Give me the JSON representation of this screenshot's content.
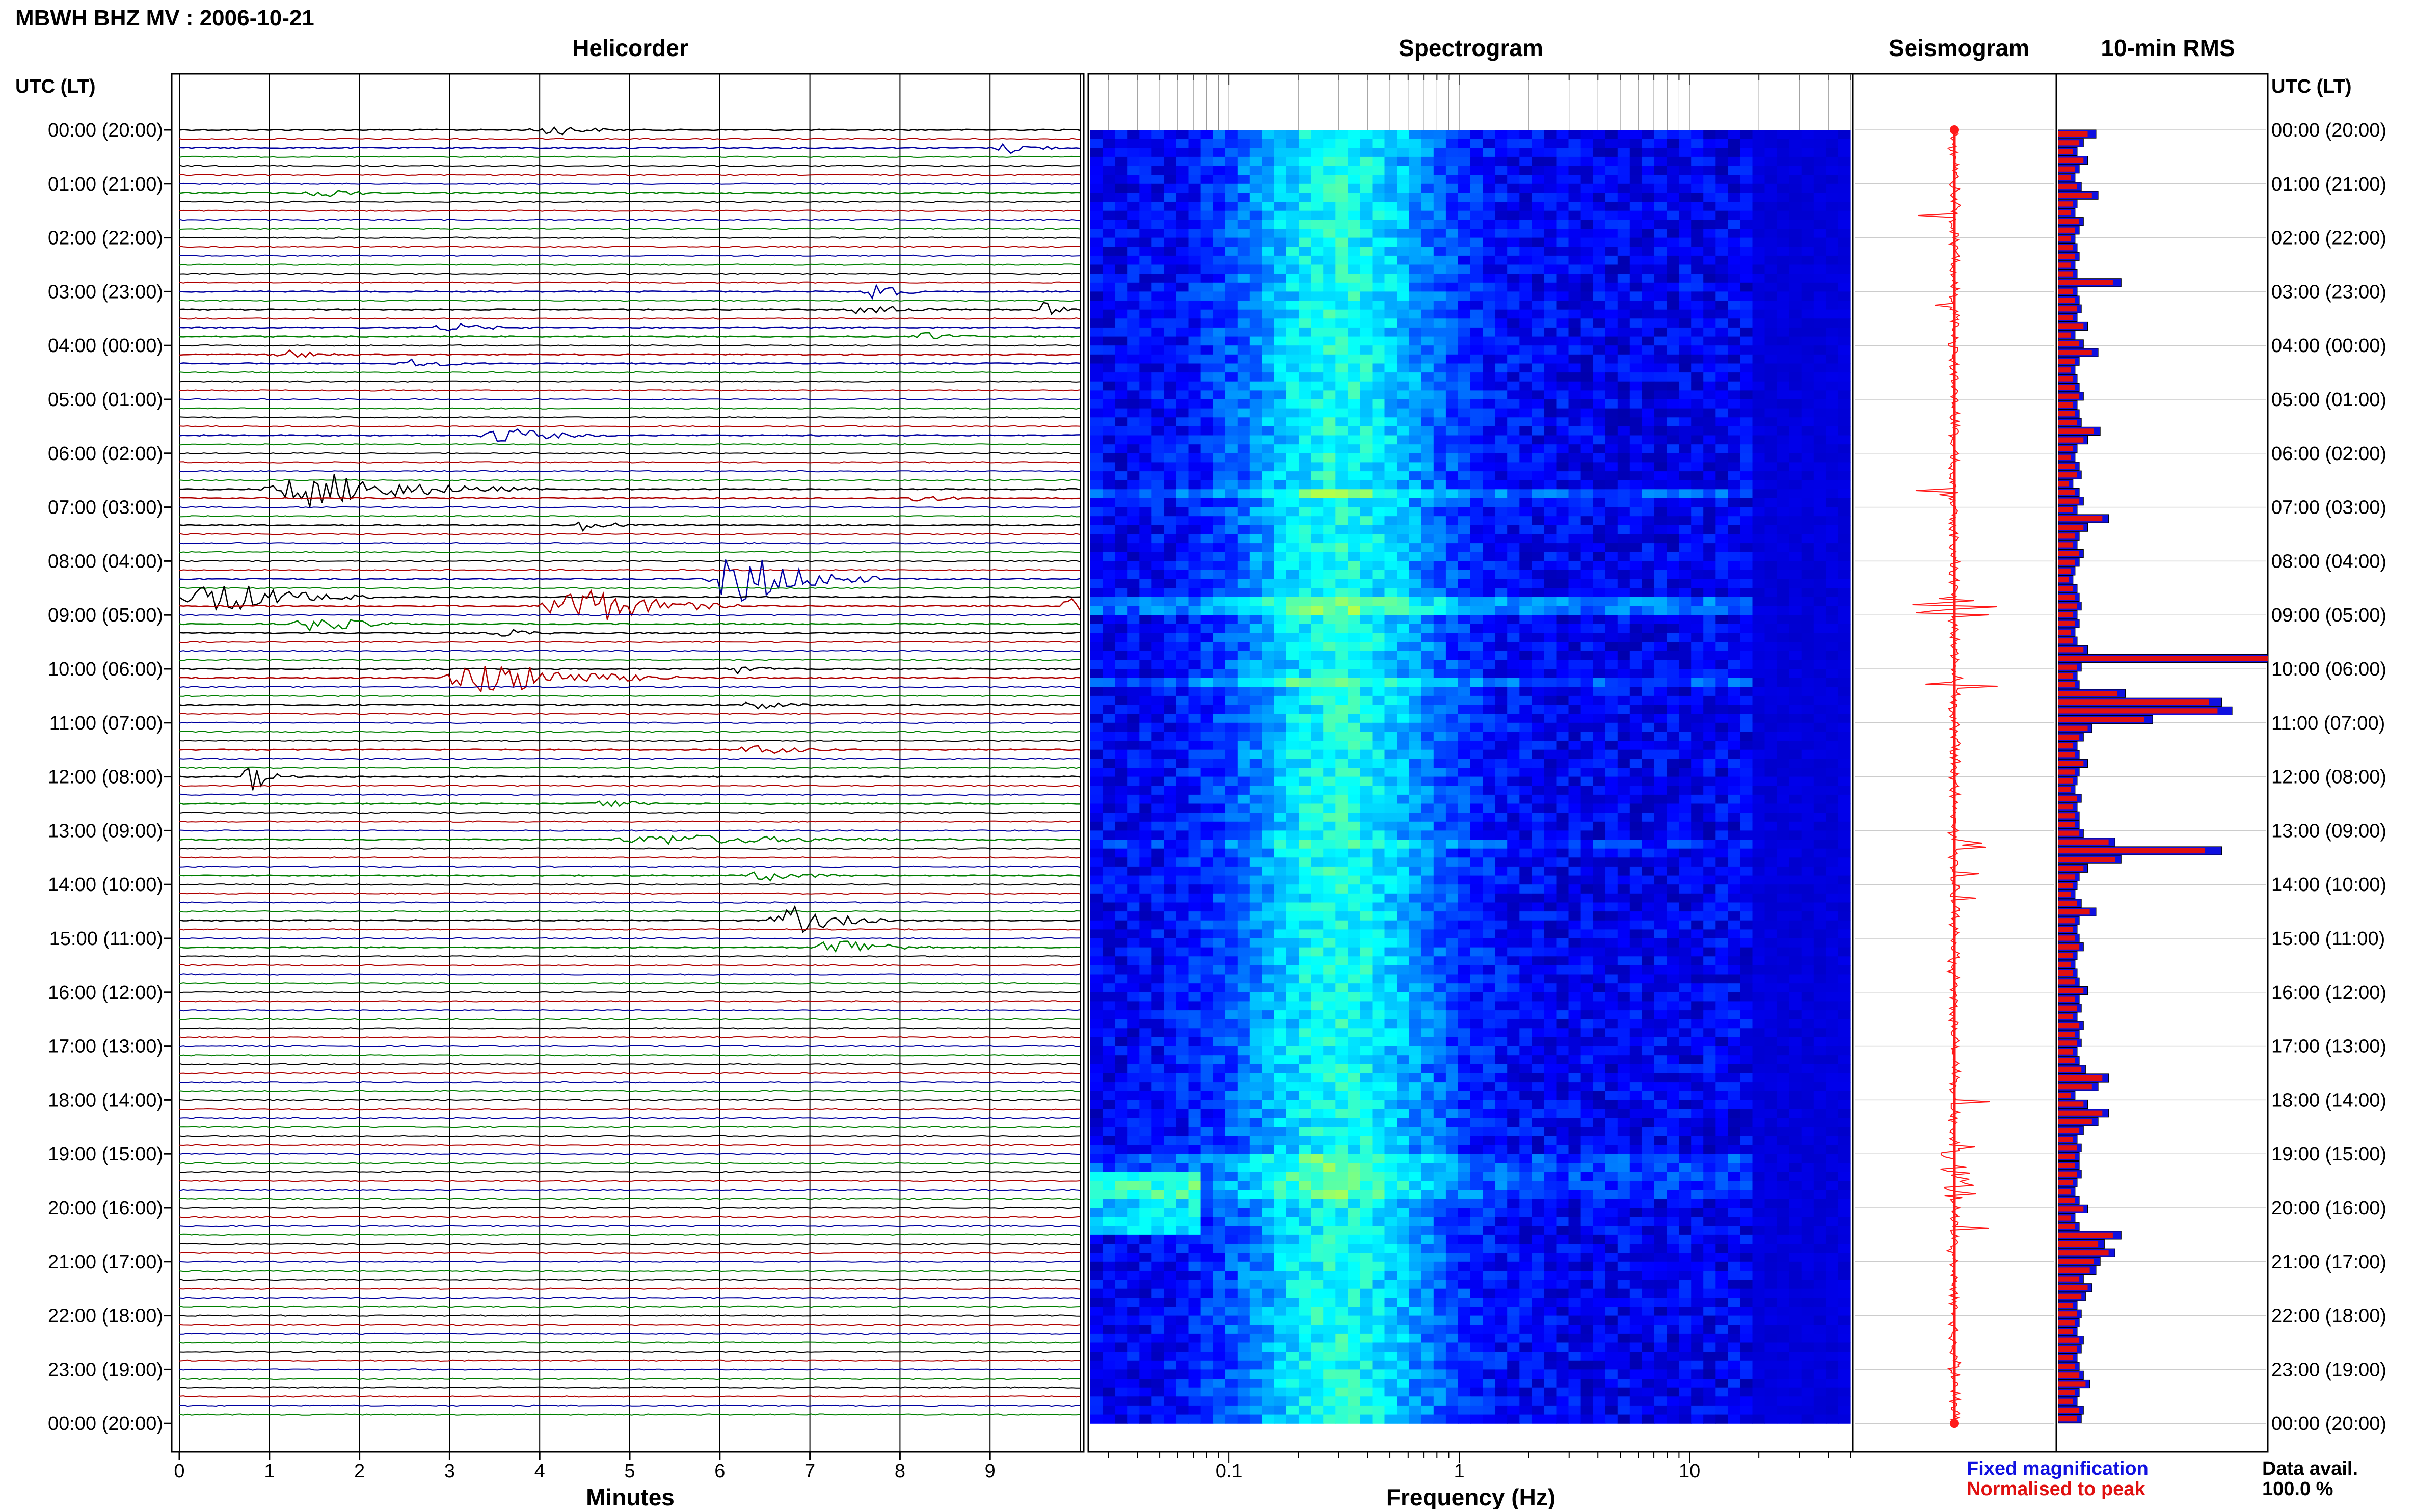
{
  "header": {
    "title": "MBWH BHZ MV : 2006-10-21"
  },
  "panels": {
    "helicorder": "Helicorder",
    "spectrogram": "Spectrogram",
    "seismogram": "Seismogram",
    "rms": "10-min RMS"
  },
  "time_axis": {
    "heading_left": "UTC (LT)",
    "heading_right": "UTC (LT)",
    "labels": [
      "00:00 (20:00)",
      "01:00 (21:00)",
      "02:00 (22:00)",
      "03:00 (23:00)",
      "04:00 (00:00)",
      "05:00 (01:00)",
      "06:00 (02:00)",
      "07:00 (03:00)",
      "08:00 (04:00)",
      "09:00 (05:00)",
      "10:00 (06:00)",
      "11:00 (07:00)",
      "12:00 (08:00)",
      "13:00 (09:00)",
      "14:00 (10:00)",
      "15:00 (11:00)",
      "16:00 (12:00)",
      "17:00 (13:00)",
      "18:00 (14:00)",
      "19:00 (15:00)",
      "20:00 (16:00)",
      "21:00 (17:00)",
      "22:00 (18:00)",
      "23:00 (19:00)",
      "00:00 (20:00)"
    ]
  },
  "legend": {
    "fixed": "Fixed magnification",
    "normalised": "Normalised to peak",
    "fixed_color": "#1010e0",
    "normalised_color": "#e01010"
  },
  "availability": {
    "label": "Data avail.",
    "value": "100.0 %"
  },
  "chart_data": [
    {
      "type": "line",
      "panel": "helicorder",
      "xlabel": "Minutes",
      "x_ticks": [
        "0",
        "1",
        "2",
        "3",
        "4",
        "5",
        "6",
        "7",
        "8",
        "9"
      ],
      "xlim": [
        0,
        10
      ],
      "rows_per_hour": 6,
      "trace_colors": [
        "#000000",
        "#b00000",
        "#0000a0",
        "#008000"
      ],
      "events": [
        {
          "row": 0,
          "minute": 4.1,
          "amp": 0.35,
          "dur": 1.0
        },
        {
          "row": 2,
          "minute": 9.2,
          "amp": 0.35,
          "dur": 0.8
        },
        {
          "row": 7,
          "minute": 1.6,
          "amp": 0.25,
          "dur": 1.0
        },
        {
          "row": 18,
          "minute": 7.7,
          "amp": 0.8,
          "dur": 0.5
        },
        {
          "row": 20,
          "minute": 7.6,
          "amp": 0.4,
          "dur": 1.0
        },
        {
          "row": 20,
          "minute": 9.6,
          "amp": 0.4,
          "dur": 0.5
        },
        {
          "row": 22,
          "minute": 3.0,
          "amp": 0.25,
          "dur": 1.2
        },
        {
          "row": 23,
          "minute": 8.3,
          "amp": 0.25,
          "dur": 0.8
        },
        {
          "row": 25,
          "minute": 1.2,
          "amp": 0.25,
          "dur": 1.0
        },
        {
          "row": 26,
          "minute": 2.6,
          "amp": 0.25,
          "dur": 1.0
        },
        {
          "row": 34,
          "minute": 3.6,
          "amp": 0.5,
          "dur": 1.2
        },
        {
          "row": 40,
          "minute": 1.5,
          "amp": 1.0,
          "dur": 2.5
        },
        {
          "row": 41,
          "minute": 8.2,
          "amp": 0.25,
          "dur": 0.8
        },
        {
          "row": 44,
          "minute": 4.5,
          "amp": 0.35,
          "dur": 0.8
        },
        {
          "row": 50,
          "minute": 6.2,
          "amp": 1.6,
          "dur": 1.6
        },
        {
          "row": 52,
          "minute": 0.4,
          "amp": 1.0,
          "dur": 1.8
        },
        {
          "row": 53,
          "minute": 4.4,
          "amp": 1.2,
          "dur": 1.8
        },
        {
          "row": 53,
          "minute": 9.9,
          "amp": 0.9,
          "dur": 0.5
        },
        {
          "row": 55,
          "minute": 1.5,
          "amp": 0.5,
          "dur": 1.2
        },
        {
          "row": 56,
          "minute": 3.6,
          "amp": 0.25,
          "dur": 0.8
        },
        {
          "row": 60,
          "minute": 6.2,
          "amp": 0.25,
          "dur": 0.8
        },
        {
          "row": 61,
          "minute": 3.4,
          "amp": 1.0,
          "dur": 2.2
        },
        {
          "row": 64,
          "minute": 6.4,
          "amp": 0.3,
          "dur": 0.8
        },
        {
          "row": 69,
          "minute": 6.4,
          "amp": 0.3,
          "dur": 1.2
        },
        {
          "row": 72,
          "minute": 0.8,
          "amp": 0.8,
          "dur": 0.5
        },
        {
          "row": 75,
          "minute": 4.7,
          "amp": 0.3,
          "dur": 0.8
        },
        {
          "row": 79,
          "minute": 5.5,
          "amp": 0.3,
          "dur": 4.0
        },
        {
          "row": 83,
          "minute": 6.5,
          "amp": 0.3,
          "dur": 1.2
        },
        {
          "row": 88,
          "minute": 6.8,
          "amp": 0.8,
          "dur": 1.2
        },
        {
          "row": 91,
          "minute": 7.3,
          "amp": 0.6,
          "dur": 1.2
        }
      ]
    },
    {
      "type": "heatmap",
      "panel": "spectrogram",
      "xlabel": "Frequency (Hz)",
      "x_scale": "log",
      "x_ticks": [
        "0.1",
        "1",
        "10"
      ],
      "xlim": [
        0.025,
        50
      ],
      "colormap": [
        "#00007f",
        "#0000ff",
        "#0080ff",
        "#00ffff",
        "#80ff80",
        "#ffff00"
      ]
    },
    {
      "type": "line",
      "panel": "seismogram",
      "description_free": true,
      "bursts": [
        {
          "row": 40,
          "amp": 0.8
        },
        {
          "row": 52,
          "amp": 1.0
        },
        {
          "row": 53,
          "amp": 0.9
        },
        {
          "row": 61,
          "amp": 0.7
        },
        {
          "row": 79,
          "amp": 0.4
        }
      ]
    },
    {
      "type": "bar",
      "panel": "rms",
      "series": [
        {
          "name": "Fixed magnification",
          "color": "#1010e0",
          "values": [
            0.18,
            0.12,
            0.09,
            0.14,
            0.1,
            0.08,
            0.11,
            0.19,
            0.09,
            0.08,
            0.12,
            0.1,
            0.08,
            0.09,
            0.1,
            0.08,
            0.09,
            0.3,
            0.09,
            0.1,
            0.11,
            0.09,
            0.14,
            0.08,
            0.12,
            0.19,
            0.1,
            0.08,
            0.09,
            0.1,
            0.12,
            0.09,
            0.1,
            0.11,
            0.2,
            0.14,
            0.09,
            0.08,
            0.1,
            0.11,
            0.07,
            0.1,
            0.12,
            0.09,
            0.24,
            0.14,
            0.1,
            0.09,
            0.12,
            0.1,
            0.08,
            0.07,
            0.09,
            0.1,
            0.11,
            0.09,
            0.1,
            0.08,
            0.09,
            0.14,
            1.0,
            0.11,
            0.09,
            0.1,
            0.32,
            0.78,
            0.83,
            0.45,
            0.16,
            0.12,
            0.09,
            0.1,
            0.14,
            0.1,
            0.09,
            0.08,
            0.11,
            0.09,
            0.1,
            0.1,
            0.12,
            0.27,
            0.78,
            0.3,
            0.14,
            0.1,
            0.09,
            0.08,
            0.11,
            0.18,
            0.1,
            0.09,
            0.1,
            0.12,
            0.09,
            0.08,
            0.09,
            0.1,
            0.14,
            0.1,
            0.11,
            0.09,
            0.12,
            0.1,
            0.11,
            0.09,
            0.1,
            0.13,
            0.24,
            0.19,
            0.08,
            0.14,
            0.24,
            0.19,
            0.12,
            0.09,
            0.11,
            0.1,
            0.1,
            0.11,
            0.09,
            0.08,
            0.1,
            0.14,
            0.08,
            0.1,
            0.3,
            0.22,
            0.27,
            0.2,
            0.18,
            0.12,
            0.16,
            0.13,
            0.09,
            0.11,
            0.1,
            0.09,
            0.12,
            0.11,
            0.09,
            0.1,
            0.12,
            0.15,
            0.1,
            0.09,
            0.12,
            0.11
          ]
        },
        {
          "name": "Normalised to peak",
          "color": "#e01010",
          "values": [
            0.14,
            0.1,
            0.07,
            0.12,
            0.08,
            0.06,
            0.09,
            0.16,
            0.07,
            0.06,
            0.1,
            0.08,
            0.06,
            0.07,
            0.08,
            0.06,
            0.07,
            0.26,
            0.07,
            0.08,
            0.09,
            0.07,
            0.12,
            0.06,
            0.1,
            0.16,
            0.08,
            0.06,
            0.07,
            0.08,
            0.1,
            0.07,
            0.08,
            0.09,
            0.17,
            0.12,
            0.07,
            0.06,
            0.08,
            0.09,
            0.05,
            0.08,
            0.1,
            0.07,
            0.21,
            0.12,
            0.08,
            0.07,
            0.1,
            0.08,
            0.06,
            0.05,
            0.07,
            0.08,
            0.09,
            0.07,
            0.08,
            0.06,
            0.07,
            0.12,
            1.0,
            0.09,
            0.07,
            0.08,
            0.28,
            0.72,
            0.76,
            0.41,
            0.14,
            0.1,
            0.07,
            0.08,
            0.12,
            0.08,
            0.07,
            0.06,
            0.09,
            0.07,
            0.08,
            0.08,
            0.1,
            0.24,
            0.7,
            0.27,
            0.12,
            0.08,
            0.07,
            0.06,
            0.09,
            0.15,
            0.08,
            0.07,
            0.08,
            0.1,
            0.07,
            0.06,
            0.07,
            0.08,
            0.12,
            0.08,
            0.09,
            0.07,
            0.1,
            0.08,
            0.09,
            0.07,
            0.08,
            0.11,
            0.21,
            0.16,
            0.06,
            0.12,
            0.21,
            0.16,
            0.1,
            0.07,
            0.09,
            0.08,
            0.08,
            0.09,
            0.07,
            0.06,
            0.08,
            0.12,
            0.06,
            0.08,
            0.26,
            0.19,
            0.24,
            0.17,
            0.15,
            0.1,
            0.14,
            0.11,
            0.07,
            0.09,
            0.08,
            0.07,
            0.1,
            0.09,
            0.07,
            0.08,
            0.1,
            0.13,
            0.08,
            0.07,
            0.1,
            0.09
          ]
        }
      ]
    }
  ]
}
